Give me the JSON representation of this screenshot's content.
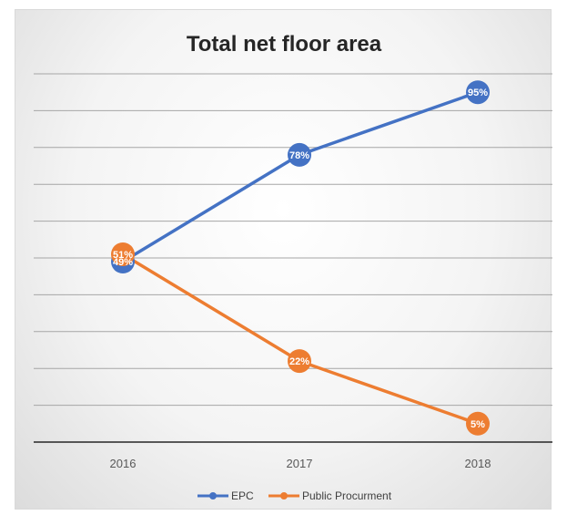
{
  "chart_data": {
    "type": "line",
    "title": "Total net floor area",
    "categories": [
      "2016",
      "2017",
      "2018"
    ],
    "ylim": [
      0,
      100
    ],
    "grid": true,
    "legend_placement": "bottom",
    "series": [
      {
        "name": "EPC",
        "values": [
          49,
          78,
          95
        ],
        "labels": [
          "49%",
          "78%",
          "95%"
        ],
        "color": "#4472c4"
      },
      {
        "name": "Public Procurment",
        "values": [
          51,
          22,
          5
        ],
        "labels": [
          "51%",
          "22%",
          "5%"
        ],
        "color": "#ed7d31"
      }
    ]
  }
}
